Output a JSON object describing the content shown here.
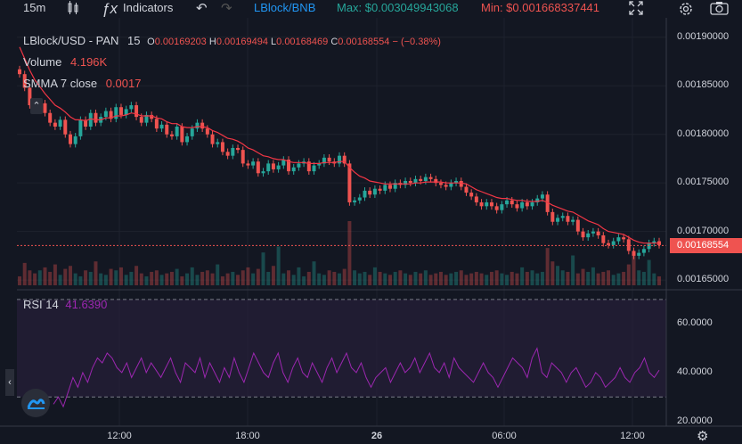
{
  "toolbar": {
    "interval": "15m",
    "indicators_label": "Indicators",
    "pair_link": "LBlock/BNB",
    "max_text": "Max: $0.003049943068",
    "min_text": "Min: $0.001668337441",
    "colors": {
      "pair": "#2196f3",
      "max": "#26a69a",
      "min": "#ef5350"
    }
  },
  "legend": {
    "symbol": "LBlock/USD - PAN",
    "interval": "15",
    "o_label": "O",
    "o_value": "0.00169203",
    "h_label": "H",
    "h_value": "0.00169494",
    "l_label": "L",
    "l_value": "0.00168469",
    "c_label": "C",
    "c_value": "0.00168554",
    "change": "− (−0.38%)",
    "volume_label": "Volume",
    "volume_value": "4.196K",
    "smma_label": "SMMA 7 close",
    "smma_value": "0.0017",
    "rsi_label": "RSI 14",
    "rsi_value": "41.6390"
  },
  "price_badge": "0.00168554",
  "chart_data": [
    {
      "type": "candlestick",
      "title": "LBlock/USD - PAN",
      "y_ticks": [
        "0.00190000",
        "0.00185000",
        "0.00180000",
        "0.00175000",
        "0.00170000",
        "0.00165000"
      ],
      "ylim": [
        0.00164,
        0.00192
      ],
      "x_ticks": [
        "12:00",
        "18:00",
        "26",
        "06:00",
        "12:00"
      ],
      "last_close": 0.00168554,
      "colors": {
        "up": "#26a69a",
        "down": "#ef5350",
        "smma": "#f23645"
      },
      "close": [
        0.001862,
        0.001848,
        0.00183,
        0.001826,
        0.001832,
        0.001822,
        0.001812,
        0.001808,
        0.001815,
        0.0018,
        0.00179,
        0.001798,
        0.001815,
        0.001808,
        0.001822,
        0.001812,
        0.001818,
        0.001824,
        0.001816,
        0.001828,
        0.00182,
        0.001826,
        0.00183,
        0.001818,
        0.001812,
        0.00182,
        0.001816,
        0.001806,
        0.00181,
        0.0018,
        0.001798,
        0.001808,
        0.001792,
        0.001798,
        0.001806,
        0.001812,
        0.001806,
        0.0018,
        0.00179,
        0.001792,
        0.001782,
        0.001778,
        0.001786,
        0.001784,
        0.00177,
        0.001768,
        0.001772,
        0.00176,
        0.001762,
        0.00177,
        0.001764,
        0.001768,
        0.001774,
        0.001762,
        0.001766,
        0.00177,
        0.001772,
        0.001762,
        0.001768,
        0.00177,
        0.001776,
        0.001772,
        0.00177,
        0.001778,
        0.00177,
        0.00173,
        0.001732,
        0.001735,
        0.001742,
        0.001738,
        0.001744,
        0.001742,
        0.001748,
        0.001744,
        0.00175,
        0.001748,
        0.001752,
        0.00175,
        0.001754,
        0.001752,
        0.001756,
        0.001754,
        0.00175,
        0.001748,
        0.001746,
        0.00175,
        0.001752,
        0.001746,
        0.00174,
        0.001736,
        0.00173,
        0.001726,
        0.00173,
        0.001726,
        0.001722,
        0.001728,
        0.001732,
        0.001728,
        0.001724,
        0.00173,
        0.001726,
        0.00173,
        0.001734,
        0.001738,
        0.00172,
        0.00171,
        0.001714,
        0.001716,
        0.00171,
        0.001712,
        0.0017,
        0.001694,
        0.001698,
        0.0017,
        0.001696,
        0.001688,
        0.001686,
        0.00169,
        0.001694,
        0.001692,
        0.00168,
        0.001675,
        0.001678,
        0.001682,
        0.001688,
        0.00169,
        0.001686
      ],
      "volume": [
        0.6,
        1.5,
        1.0,
        0.8,
        1.0,
        1.2,
        0.9,
        1.4,
        0.7,
        1.1,
        1.3,
        0.8,
        0.6,
        1.0,
        0.9,
        1.6,
        0.8,
        0.7,
        1.1,
        1.0,
        1.2,
        0.7,
        0.9,
        1.3,
        0.8,
        0.6,
        0.9,
        1.0,
        0.7,
        0.8,
        0.9,
        1.1,
        0.6,
        0.8,
        1.2,
        0.7,
        0.9,
        1.0,
        0.8,
        1.4,
        0.6,
        0.8,
        0.9,
        0.7,
        1.0,
        1.2,
        0.8,
        1.1,
        2.2,
        0.9,
        1.3,
        2.6,
        0.8,
        1.0,
        0.7,
        1.2,
        0.6,
        0.9,
        1.6,
        0.8,
        0.7,
        1.0,
        0.9,
        0.8,
        1.1,
        4.3,
        1.0,
        0.8,
        0.9,
        0.7,
        1.2,
        0.9,
        0.8,
        0.7,
        0.9,
        1.0,
        0.8,
        0.7,
        0.9,
        0.8,
        1.0,
        0.7,
        0.8,
        0.9,
        0.7,
        0.8,
        0.9,
        1.0,
        0.7,
        0.8,
        0.9,
        0.8,
        0.7,
        0.9,
        1.0,
        0.8,
        0.7,
        0.9,
        0.8,
        1.2,
        0.9,
        1.0,
        0.8,
        0.9,
        2.5,
        1.6,
        1.3,
        1.0,
        0.9,
        2.0,
        0.8,
        1.1,
        0.9,
        1.2,
        0.8,
        0.9,
        1.0,
        0.7,
        0.8,
        0.9,
        1.4,
        2.3,
        1.0,
        0.9,
        1.7,
        0.8,
        0.6
      ],
      "smma": [
        0.00189,
        0.001878,
        0.001866,
        0.001856,
        0.001849,
        0.001842,
        0.001836,
        0.00183,
        0.001827,
        0.001823,
        0.001818,
        0.001815,
        0.001815,
        0.001814,
        0.001816,
        0.001815,
        0.001815,
        0.001817,
        0.001817,
        0.001819,
        0.001819,
        0.00182,
        0.001822,
        0.001821,
        0.001819,
        0.001819,
        0.001819,
        0.001817,
        0.001816,
        0.001813,
        0.001811,
        0.001811,
        0.001808,
        0.001807,
        0.001807,
        0.001808,
        0.001808,
        0.001807,
        0.001804,
        0.001802,
        0.001799,
        0.001796,
        0.001795,
        0.001793,
        0.00179,
        0.001786,
        0.001784,
        0.001781,
        0.001778,
        0.001777,
        0.001775,
        0.001774,
        0.001774,
        0.001772,
        0.001771,
        0.001771,
        0.001771,
        0.00177,
        0.00177,
        0.00177,
        0.001771,
        0.001771,
        0.001771,
        0.001772,
        0.001772,
        0.001766,
        0.001761,
        0.001757,
        0.001755,
        0.001752,
        0.001751,
        0.00175,
        0.001749,
        0.001749,
        0.001749,
        0.001749,
        0.001749,
        0.001749,
        0.00175,
        0.00175,
        0.001751,
        0.001751,
        0.001751,
        0.001751,
        0.00175,
        0.00175,
        0.00175,
        0.00175,
        0.001749,
        0.001746,
        0.001743,
        0.001741,
        0.001739,
        0.001737,
        0.001735,
        0.001734,
        0.001734,
        0.001733,
        0.001732,
        0.001732,
        0.001731,
        0.001731,
        0.001731,
        0.001732,
        0.00173,
        0.001727,
        0.001725,
        0.001723,
        0.001721,
        0.00172,
        0.001717,
        0.001714,
        0.001711,
        0.001709,
        0.001707,
        0.001703,
        0.0017,
        0.001699,
        0.001698,
        0.001697,
        0.001694,
        0.001691,
        0.001689,
        0.001688,
        0.001688,
        0.001688,
        0.001688
      ]
    },
    {
      "type": "line",
      "title": "RSI 14",
      "y_ticks": [
        "60.0000",
        "40.0000",
        "20.0000"
      ],
      "ylim": [
        18,
        74
      ],
      "band": [
        30,
        70
      ],
      "colors": {
        "line": "#9c27b0",
        "band": "#2a1f3d"
      },
      "values": [
        27,
        30,
        26,
        32,
        38,
        34,
        40,
        36,
        42,
        46,
        44,
        48,
        46,
        42,
        40,
        44,
        38,
        42,
        46,
        40,
        44,
        41,
        38,
        42,
        46,
        40,
        36,
        44,
        42,
        40,
        46,
        38,
        44,
        40,
        36,
        42,
        38,
        46,
        40,
        36,
        42,
        48,
        44,
        40,
        38,
        44,
        48,
        40,
        36,
        42,
        46,
        40,
        38,
        44,
        40,
        36,
        42,
        46,
        40,
        44,
        48,
        42,
        40,
        44,
        38,
        34,
        38,
        40,
        42,
        36,
        40,
        44,
        40,
        42,
        46,
        40,
        44,
        48,
        42,
        40,
        44,
        38,
        46,
        42,
        40,
        38,
        36,
        40,
        44,
        40,
        38,
        34,
        38,
        42,
        46,
        44,
        42,
        38,
        46,
        50,
        40,
        38,
        44,
        42,
        40,
        36,
        40,
        42,
        38,
        34,
        36,
        40,
        38,
        34,
        36,
        38,
        42,
        38,
        36,
        40,
        42,
        46,
        40,
        38,
        41
      ]
    }
  ]
}
